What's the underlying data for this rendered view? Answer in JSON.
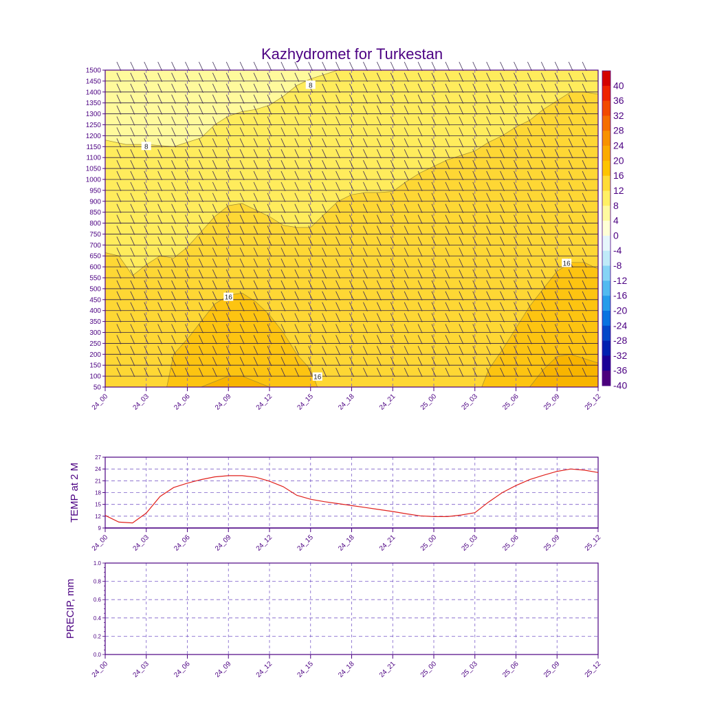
{
  "title": "Kazhydromet for Turkestan",
  "time_labels": [
    "24_00",
    "24_03",
    "24_06",
    "24_09",
    "24_12",
    "24_15",
    "24_18",
    "24_21",
    "25_00",
    "25_03",
    "25_06",
    "25_09",
    "25_12"
  ],
  "colors": {
    "axis": "#4b0082",
    "temp_line": "#e0201b",
    "grid": "#7a5cc8"
  },
  "chart_data": [
    {
      "type": "heatmap",
      "name": "cross-section",
      "ylabel": "",
      "y_range": [
        50,
        1500
      ],
      "y_ticks": [
        50,
        100,
        150,
        200,
        250,
        300,
        350,
        400,
        450,
        500,
        550,
        600,
        650,
        700,
        750,
        800,
        850,
        900,
        950,
        1000,
        1050,
        1100,
        1150,
        1200,
        1250,
        1300,
        1350,
        1400,
        1450,
        1500
      ],
      "x_range": [
        0,
        36
      ],
      "contour_labels": [
        {
          "text": "8",
          "x": 15,
          "y": 1430
        },
        {
          "text": "8",
          "x": 3,
          "y": 1150
        },
        {
          "text": "16",
          "x": 9,
          "y": 460
        },
        {
          "text": "16",
          "x": 15.5,
          "y": 95
        },
        {
          "text": "16",
          "x": 33.7,
          "y": 615
        }
      ],
      "colorbar": {
        "labels": [
          "40",
          "36",
          "32",
          "28",
          "24",
          "20",
          "16",
          "12",
          "8",
          "4",
          "0",
          "-4",
          "-8",
          "-12",
          "-16",
          "-20",
          "-24",
          "-28",
          "-32",
          "-36",
          "-40"
        ],
        "colors": [
          "#d40000",
          "#ee2200",
          "#f24a00",
          "#f56e00",
          "#f89200",
          "#fbab00",
          "#fdc400",
          "#fedc36",
          "#fff064",
          "#fffaa0",
          "#ffffd6",
          "#e6f6fb",
          "#bfeaf8",
          "#86d4f5",
          "#52baf0",
          "#259cea",
          "#0873e0",
          "#0347c8",
          "#0020b0",
          "#1a0096",
          "#4b007d"
        ]
      },
      "bands": [
        {
          "level": "4-8",
          "color": "#fffa9c"
        },
        {
          "level": "8-12",
          "color": "#ffec5c"
        },
        {
          "level": "12-16",
          "color": "#fed734"
        },
        {
          "level": "16-20",
          "color": "#fdc411"
        }
      ]
    },
    {
      "type": "line",
      "name": "TEMP at 2 M",
      "ylabel": "TEMP at 2 M",
      "ylim": [
        9,
        27
      ],
      "y_ticks": [
        9,
        12,
        15,
        18,
        21,
        24,
        27
      ],
      "x": [
        0,
        1,
        2,
        3,
        4,
        5,
        6,
        7,
        8,
        9,
        10,
        11,
        12,
        13,
        14,
        15,
        16,
        17,
        18,
        19,
        20,
        21,
        22,
        23,
        24,
        25,
        26,
        27,
        28,
        29,
        30,
        31,
        32,
        33,
        34,
        35,
        36
      ],
      "values": [
        12.2,
        10.5,
        10.3,
        12.8,
        17.0,
        19.3,
        20.4,
        21.3,
        22.0,
        22.3,
        22.3,
        21.9,
        20.9,
        19.5,
        17.3,
        16.3,
        15.7,
        15.2,
        14.7,
        14.2,
        13.7,
        13.2,
        12.6,
        12.1,
        11.9,
        11.9,
        12.3,
        12.9,
        15.6,
        18.0,
        19.8,
        21.3,
        22.4,
        23.4,
        24.0,
        23.7,
        23.1
      ]
    },
    {
      "type": "line",
      "name": "PRECIP, mm",
      "ylabel": "PRECIP, mm",
      "ylim": [
        0.0,
        1.0
      ],
      "y_ticks": [
        "0.0",
        "0.2",
        "0.4",
        "0.6",
        "0.8",
        "1.0"
      ],
      "values": []
    }
  ]
}
